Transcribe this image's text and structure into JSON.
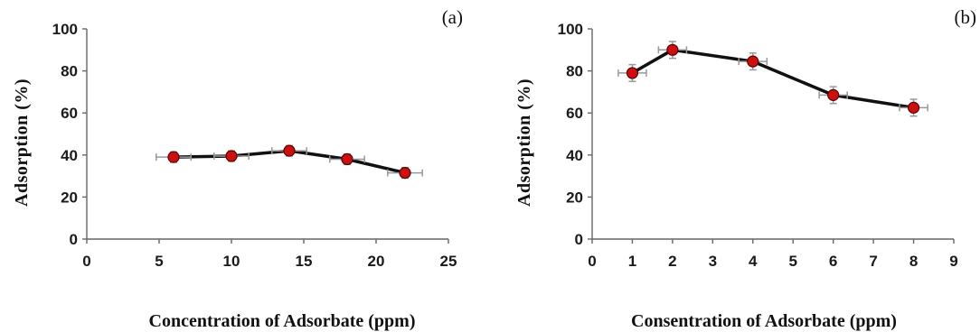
{
  "chart_data": [
    {
      "type": "line",
      "panel_label": "(a)",
      "xlabel": "Concentration of Adsorbate (ppm)",
      "ylabel": "Adsorption (%)",
      "xlim": [
        0,
        25
      ],
      "ylim": [
        0,
        100
      ],
      "xticks": [
        "0",
        "5",
        "10",
        "15",
        "20",
        "25"
      ],
      "yticks": [
        "0",
        "20",
        "40",
        "60",
        "80",
        "100"
      ],
      "grid": false,
      "x": [
        6,
        10,
        14,
        18,
        22
      ],
      "y": [
        39,
        39.5,
        42,
        38,
        31.5
      ],
      "x_err": 1.2,
      "y_err": 2.5
    },
    {
      "type": "line",
      "panel_label": "(b)",
      "xlabel": "Consentration of Adsorbate (ppm)",
      "ylabel": "Adsorption (%)",
      "xlim": [
        0,
        9
      ],
      "ylim": [
        0,
        100
      ],
      "xticks": [
        "0",
        "1",
        "2",
        "3",
        "4",
        "5",
        "6",
        "7",
        "8",
        "9"
      ],
      "yticks": [
        "0",
        "20",
        "40",
        "60",
        "80",
        "100"
      ],
      "grid": false,
      "x": [
        1,
        2,
        4,
        6,
        8
      ],
      "y": [
        79,
        90,
        84.5,
        68.5,
        62.5
      ],
      "x_err": 0.35,
      "y_err": 4
    }
  ]
}
